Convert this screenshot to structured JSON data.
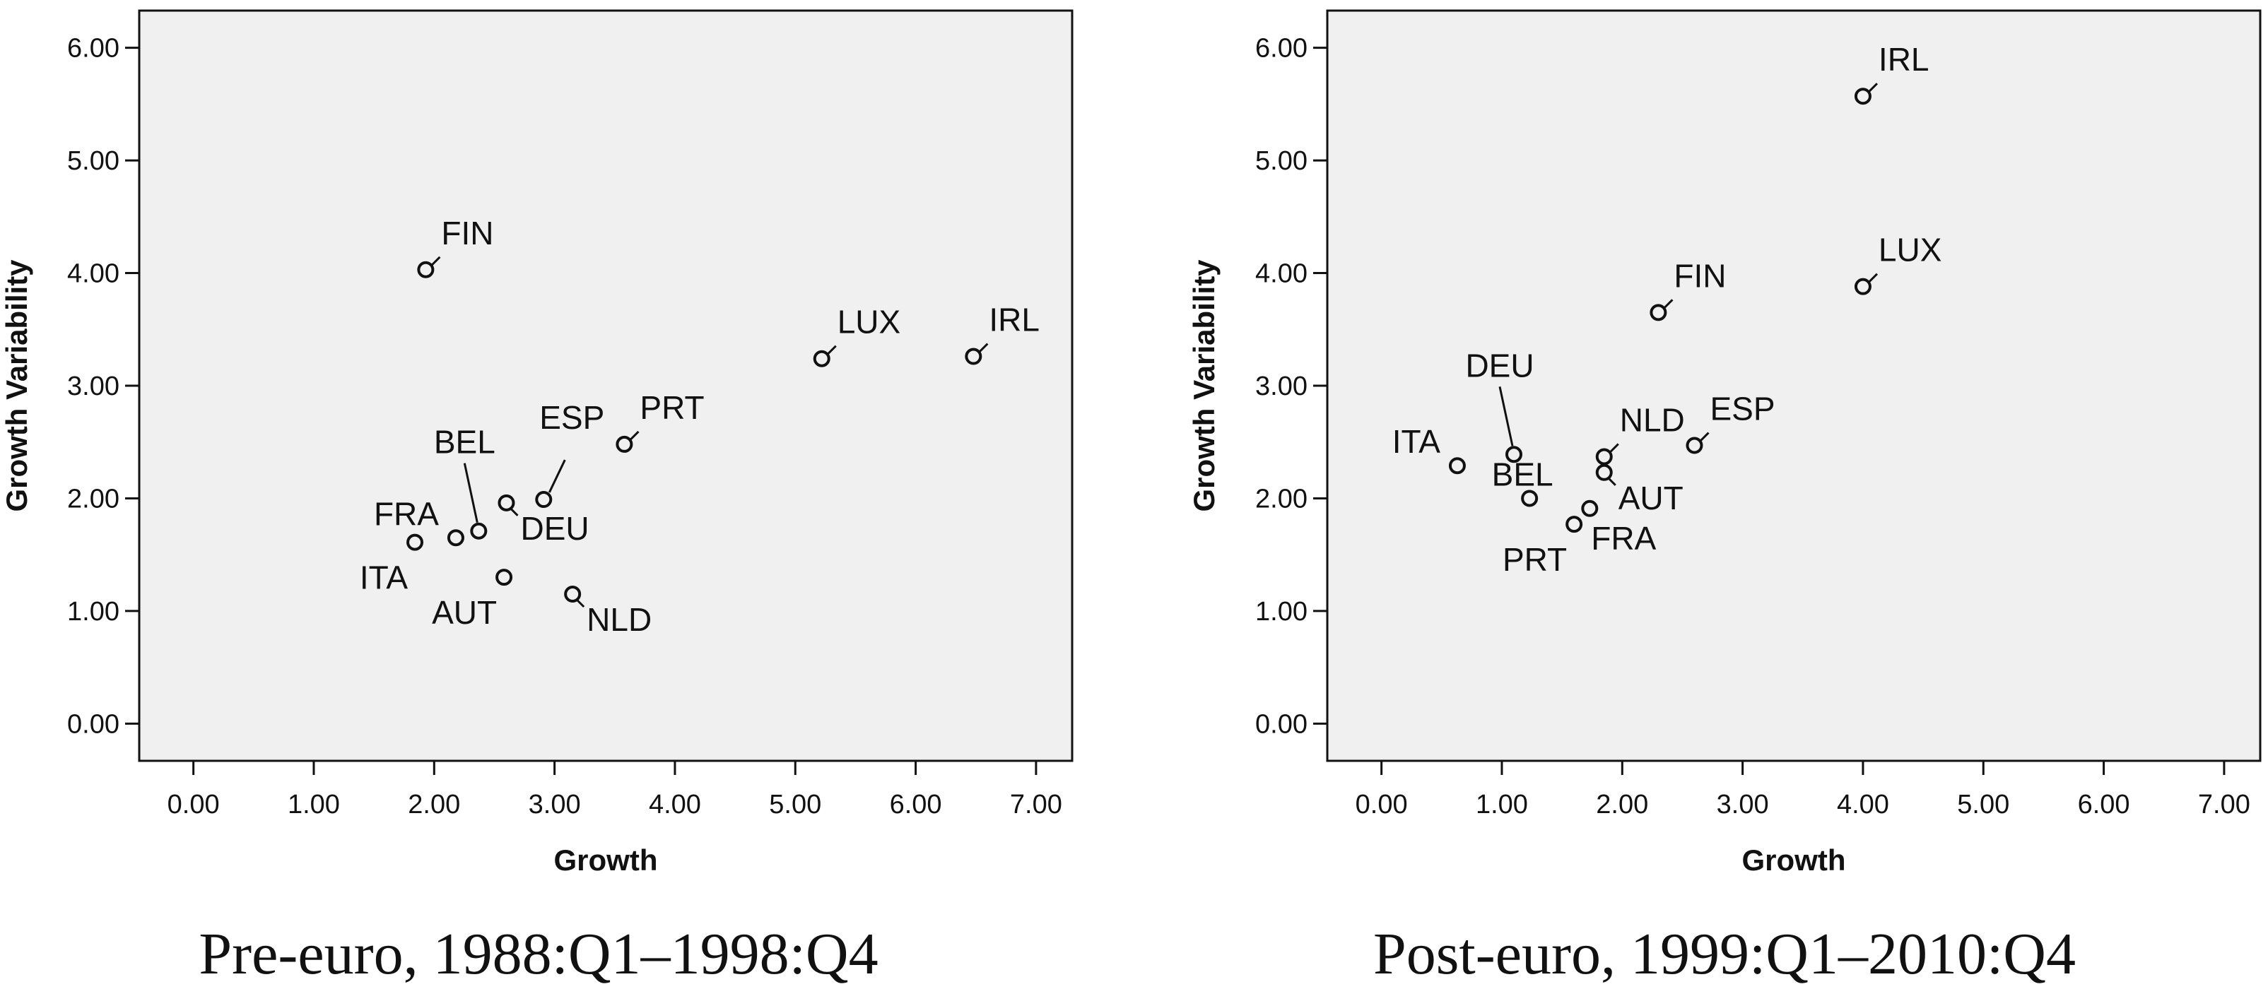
{
  "chart_data": [
    {
      "type": "scatter",
      "caption": "Pre-euro, 1988:Q1–1998:Q4",
      "xlabel": "Growth",
      "ylabel": "Growth Variability",
      "xlim": [
        -0.45,
        7.3
      ],
      "ylim": [
        -0.33,
        6.33
      ],
      "xticks": [
        "0.00",
        "1.00",
        "2.00",
        "3.00",
        "4.00",
        "5.00",
        "6.00",
        "7.00"
      ],
      "yticks": [
        "0.00",
        "1.00",
        "2.00",
        "3.00",
        "4.00",
        "5.00",
        "6.00"
      ],
      "grid": false,
      "plot_background": "#f0f0f0",
      "marker_color": "#111111",
      "points": [
        {
          "label": "FIN",
          "x": 1.93,
          "y": 4.03,
          "label_pos": "upper-right"
        },
        {
          "label": "LUX",
          "x": 5.22,
          "y": 3.24,
          "label_pos": "upper-right"
        },
        {
          "label": "IRL",
          "x": 6.48,
          "y": 3.26,
          "label_pos": "upper-right"
        },
        {
          "label": "PRT",
          "x": 3.58,
          "y": 2.48,
          "label_pos": "upper-right"
        },
        {
          "label": "ESP",
          "x": 2.91,
          "y": 1.99,
          "label_pos": "upper-leader"
        },
        {
          "label": "BEL",
          "x": 2.37,
          "y": 1.71,
          "label_pos": "above-leader"
        },
        {
          "label": "DEU",
          "x": 2.6,
          "y": 1.96,
          "label_pos": "lower-right"
        },
        {
          "label": "FRA",
          "x": 2.18,
          "y": 1.65,
          "label_pos": "upper-left"
        },
        {
          "label": "ITA",
          "x": 1.84,
          "y": 1.61,
          "label_pos": "lower-left"
        },
        {
          "label": "AUT",
          "x": 2.58,
          "y": 1.3,
          "label_pos": "lower-left"
        },
        {
          "label": "NLD",
          "x": 3.15,
          "y": 1.15,
          "label_pos": "lower-right"
        }
      ]
    },
    {
      "type": "scatter",
      "caption": "Post-euro, 1999:Q1–2010:Q4",
      "xlabel": "Growth",
      "ylabel": "Growth Variability",
      "xlim": [
        -0.45,
        7.3
      ],
      "ylim": [
        -0.33,
        6.33
      ],
      "xticks": [
        "0.00",
        "1.00",
        "2.00",
        "3.00",
        "4.00",
        "5.00",
        "6.00",
        "7.00"
      ],
      "yticks": [
        "0.00",
        "1.00",
        "2.00",
        "3.00",
        "4.00",
        "5.00",
        "6.00"
      ],
      "grid": false,
      "plot_background": "#f0f0f0",
      "marker_color": "#111111",
      "points": [
        {
          "label": "IRL",
          "x": 4.0,
          "y": 5.57,
          "label_pos": "upper-right"
        },
        {
          "label": "LUX",
          "x": 4.0,
          "y": 3.88,
          "label_pos": "upper-right"
        },
        {
          "label": "FIN",
          "x": 2.3,
          "y": 3.65,
          "label_pos": "upper-right"
        },
        {
          "label": "DEU",
          "x": 1.1,
          "y": 2.39,
          "label_pos": "above-leader"
        },
        {
          "label": "ITA",
          "x": 0.63,
          "y": 2.29,
          "label_pos": "upper-left"
        },
        {
          "label": "NLD",
          "x": 1.85,
          "y": 2.37,
          "label_pos": "upper-right"
        },
        {
          "label": "ESP",
          "x": 2.6,
          "y": 2.47,
          "label_pos": "upper-right"
        },
        {
          "label": "AUT",
          "x": 1.85,
          "y": 2.23,
          "label_pos": "lower-right"
        },
        {
          "label": "BEL",
          "x": 1.23,
          "y": 2.0,
          "label_pos": "upper-above"
        },
        {
          "label": "FRA",
          "x": 1.73,
          "y": 1.91,
          "label_pos": "below-right"
        },
        {
          "label": "PRT",
          "x": 1.6,
          "y": 1.77,
          "label_pos": "lower-left"
        }
      ]
    }
  ]
}
